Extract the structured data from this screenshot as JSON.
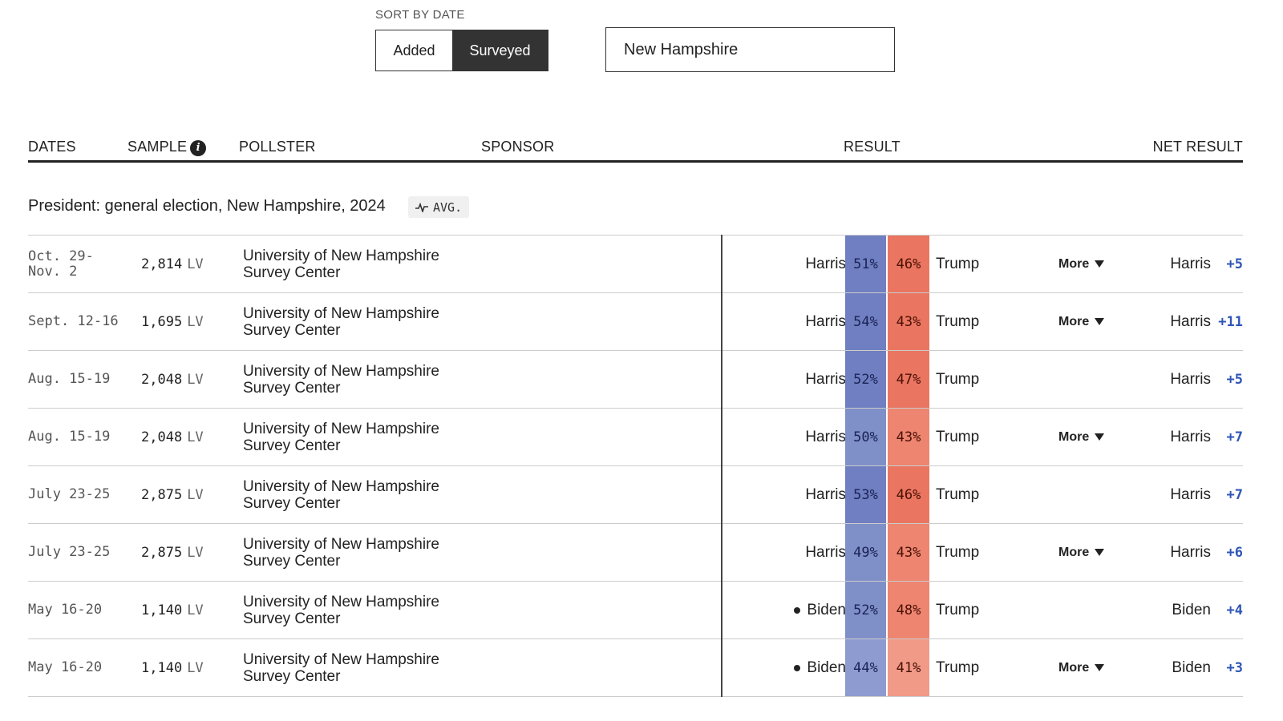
{
  "sort": {
    "label": "SORT BY DATE",
    "options": [
      "Added",
      "Surveyed"
    ],
    "selected": "Surveyed"
  },
  "search": {
    "value": "New Hampshire"
  },
  "columns": {
    "dates": "DATES",
    "sample": "SAMPLE",
    "pollster": "POLLSTER",
    "sponsor": "SPONSOR",
    "result": "RESULT",
    "net_result": "NET RESULT"
  },
  "section": {
    "title": "President: general election, New Hampshire, 2024",
    "avg_badge": "AVG."
  },
  "colors": {
    "dem_shades": [
      "#6f7fc1",
      "#7f8fc8",
      "#8d9bd0"
    ],
    "rep_shades": [
      "#ea7560",
      "#ed8570",
      "#f09a87"
    ],
    "net_accent": "#2f55b6"
  },
  "polls": [
    {
      "dates": "Oct. 29-\nNov. 2",
      "sample": "2,814",
      "pop": "LV",
      "pollster": "University of New Hampshire Survey Center",
      "sponsor": "",
      "dem": "Harris",
      "dem_pct": "51%",
      "rep_pct": "46%",
      "rep": "Trump",
      "more": "More",
      "net_name": "Harris",
      "net_val": "+5",
      "dot": false,
      "shade": 0
    },
    {
      "dates": "Sept. 12-16",
      "sample": "1,695",
      "pop": "LV",
      "pollster": "University of New Hampshire Survey Center",
      "sponsor": "",
      "dem": "Harris",
      "dem_pct": "54%",
      "rep_pct": "43%",
      "rep": "Trump",
      "more": "More",
      "net_name": "Harris",
      "net_val": "+11",
      "dot": false,
      "shade": 0
    },
    {
      "dates": "Aug. 15-19",
      "sample": "2,048",
      "pop": "LV",
      "pollster": "University of New Hampshire Survey Center",
      "sponsor": "",
      "dem": "Harris",
      "dem_pct": "52%",
      "rep_pct": "47%",
      "rep": "Trump",
      "more": "",
      "net_name": "Harris",
      "net_val": "+5",
      "dot": false,
      "shade": 0
    },
    {
      "dates": "Aug. 15-19",
      "sample": "2,048",
      "pop": "LV",
      "pollster": "University of New Hampshire Survey Center",
      "sponsor": "",
      "dem": "Harris",
      "dem_pct": "50%",
      "rep_pct": "43%",
      "rep": "Trump",
      "more": "More",
      "net_name": "Harris",
      "net_val": "+7",
      "dot": false,
      "shade": 1
    },
    {
      "dates": "July 23-25",
      "sample": "2,875",
      "pop": "LV",
      "pollster": "University of New Hampshire Survey Center",
      "sponsor": "",
      "dem": "Harris",
      "dem_pct": "53%",
      "rep_pct": "46%",
      "rep": "Trump",
      "more": "",
      "net_name": "Harris",
      "net_val": "+7",
      "dot": false,
      "shade": 0
    },
    {
      "dates": "July 23-25",
      "sample": "2,875",
      "pop": "LV",
      "pollster": "University of New Hampshire Survey Center",
      "sponsor": "",
      "dem": "Harris",
      "dem_pct": "49%",
      "rep_pct": "43%",
      "rep": "Trump",
      "more": "More",
      "net_name": "Harris",
      "net_val": "+6",
      "dot": false,
      "shade": 1
    },
    {
      "dates": "May 16-20",
      "sample": "1,140",
      "pop": "LV",
      "pollster": "University of New Hampshire Survey Center",
      "sponsor": "",
      "dem": "Biden",
      "dem_pct": "52%",
      "rep_pct": "48%",
      "rep": "Trump",
      "more": "",
      "net_name": "Biden",
      "net_val": "+4",
      "dot": true,
      "shade": 1
    },
    {
      "dates": "May 16-20",
      "sample": "1,140",
      "pop": "LV",
      "pollster": "University of New Hampshire Survey Center",
      "sponsor": "",
      "dem": "Biden",
      "dem_pct": "44%",
      "rep_pct": "41%",
      "rep": "Trump",
      "more": "More",
      "net_name": "Biden",
      "net_val": "+3",
      "dot": true,
      "shade": 2
    }
  ]
}
